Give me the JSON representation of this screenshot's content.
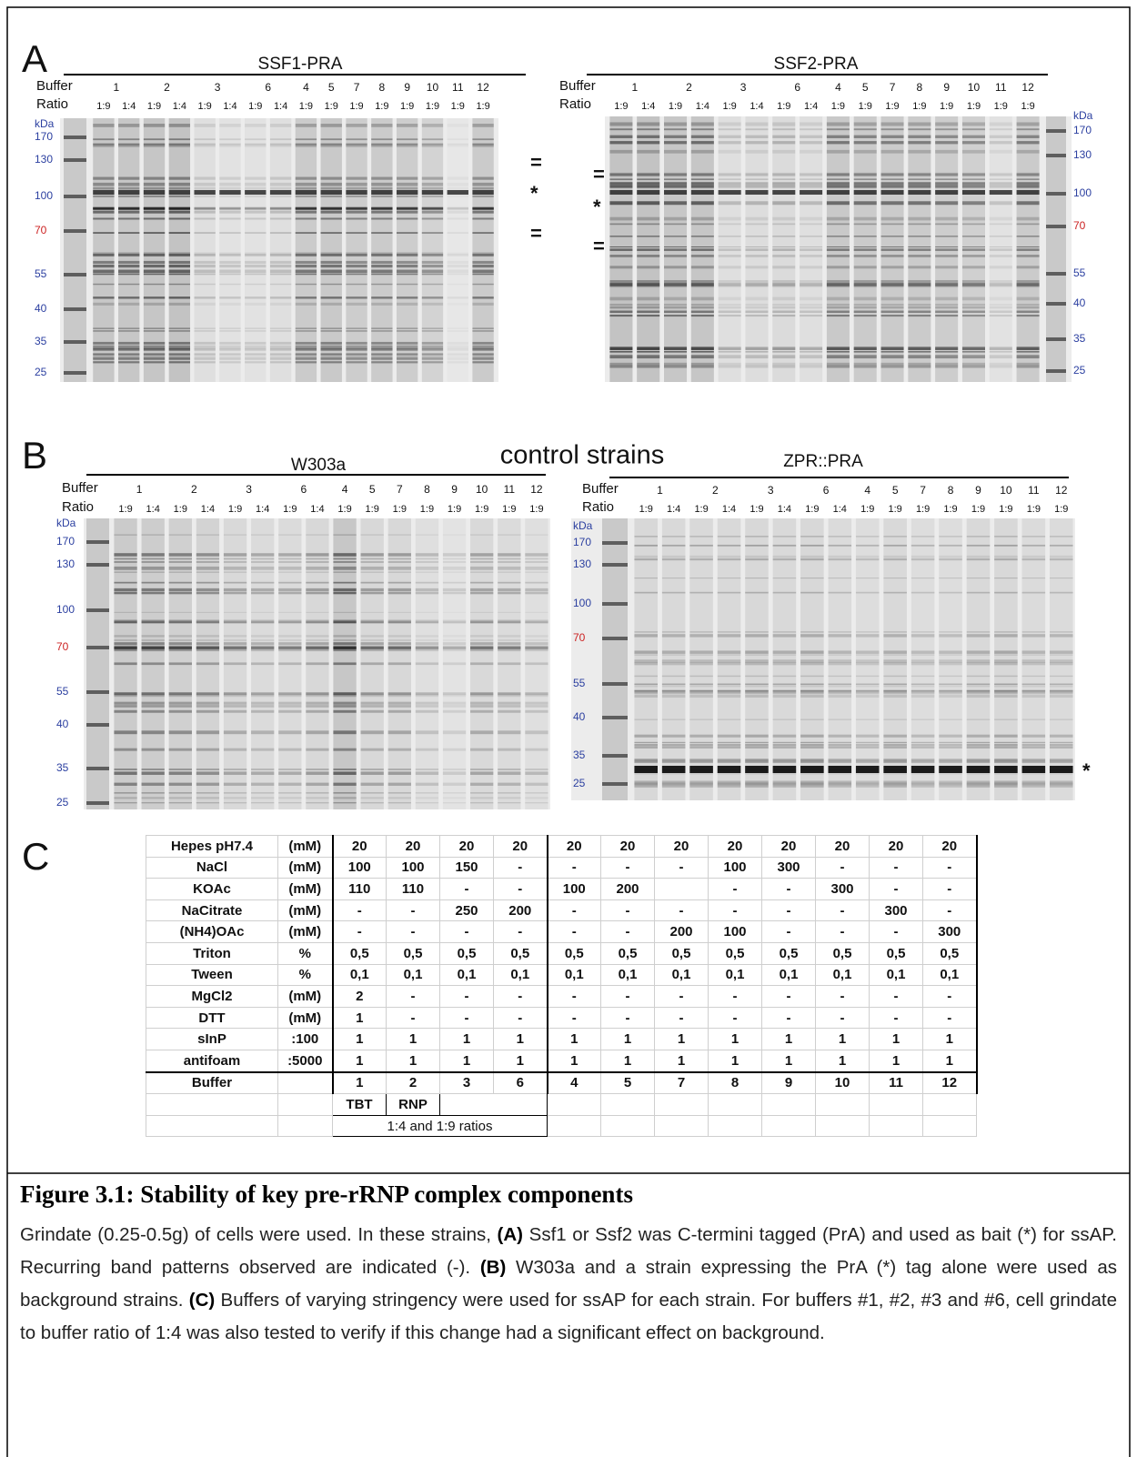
{
  "panel_a": {
    "label": "A",
    "gels": [
      {
        "title": "SSF1-PRA",
        "buffer_label": "Buffer",
        "ratio_label": "Ratio",
        "buffers": [
          1,
          2,
          3,
          6,
          4,
          5,
          7,
          8,
          9,
          10,
          11,
          12
        ],
        "ratios": [
          "1:9",
          "1:4",
          "1:9",
          "1:4",
          "1:9",
          "1:4",
          "1:9",
          "1:4",
          "1:9",
          "1:9",
          "1:9",
          "1:9",
          "1:9",
          "1:9",
          "1:9",
          "1:9"
        ],
        "marker_unit": "kDa",
        "markers": [
          170,
          130,
          100,
          70,
          55,
          40,
          35,
          25
        ],
        "annotations": [
          "=",
          "*",
          "="
        ]
      },
      {
        "title": "SSF2-PRA",
        "buffer_label": "Buffer",
        "ratio_label": "Ratio",
        "buffers": [
          1,
          2,
          3,
          6,
          4,
          5,
          7,
          8,
          9,
          10,
          11,
          12
        ],
        "ratios": [
          "1:9",
          "1:4",
          "1:9",
          "1:4",
          "1:9",
          "1:4",
          "1:9",
          "1:4",
          "1:9",
          "1:9",
          "1:9",
          "1:9",
          "1:9",
          "1:9",
          "1:9",
          "1:9"
        ],
        "marker_unit": "kDa",
        "markers": [
          170,
          130,
          100,
          70,
          55,
          40,
          35,
          25
        ],
        "annotations": [
          "=",
          "*",
          "="
        ]
      }
    ]
  },
  "panel_b": {
    "label": "B",
    "heading": "control strains",
    "gels": [
      {
        "title": "W303a",
        "buffer_label": "Buffer",
        "ratio_label": "Ratio",
        "buffers": [
          1,
          2,
          3,
          6,
          4,
          5,
          7,
          8,
          9,
          10,
          11,
          12
        ],
        "ratios": [
          "1:9",
          "1:4",
          "1:9",
          "1:4",
          "1:9",
          "1:4",
          "1:9",
          "1:4",
          "1:9",
          "1:9",
          "1:9",
          "1:9",
          "1:9",
          "1:9",
          "1:9",
          "1:9"
        ],
        "marker_unit": "kDa",
        "markers": [
          170,
          130,
          100,
          70,
          55,
          40,
          35,
          25
        ],
        "annotations": []
      },
      {
        "title": "ZPR::PRA",
        "buffer_label": "Buffer",
        "ratio_label": "Ratio",
        "buffers": [
          1,
          2,
          3,
          6,
          4,
          5,
          7,
          8,
          9,
          10,
          11,
          12
        ],
        "ratios": [
          "1:9",
          "1:4",
          "1:9",
          "1:4",
          "1:9",
          "1:4",
          "1:9",
          "1:4",
          "1:9",
          "1:9",
          "1:9",
          "1:9",
          "1:9",
          "1:9",
          "1:9",
          "1:9"
        ],
        "marker_unit": "kDa",
        "markers": [
          170,
          130,
          100,
          70,
          55,
          40,
          35,
          25
        ],
        "annotations": [
          "*"
        ]
      }
    ]
  },
  "panel_c": {
    "label": "C",
    "rows": [
      {
        "name": "Hepes pH7.4",
        "unit": "(mM)",
        "cells": [
          20,
          20,
          20,
          20,
          20,
          20,
          20,
          20,
          20,
          20,
          20,
          20
        ]
      },
      {
        "name": "NaCl",
        "unit": "(mM)",
        "cells": [
          100,
          100,
          150,
          "-",
          "-",
          "-",
          "-",
          100,
          300,
          "-",
          "-",
          "-"
        ]
      },
      {
        "name": "KOAc",
        "unit": "(mM)",
        "cells": [
          110,
          110,
          "-",
          "-",
          100,
          200,
          null,
          "-",
          "-",
          300,
          "-",
          "-"
        ]
      },
      {
        "name": "NaCitrate",
        "unit": "(mM)",
        "cells": [
          "-",
          "-",
          250,
          200,
          "-",
          "-",
          "-",
          "-",
          "-",
          "-",
          300,
          "-"
        ]
      },
      {
        "name": "(NH4)OAc",
        "unit": "(mM)",
        "cells": [
          "-",
          "-",
          "-",
          "-",
          "-",
          "-",
          200,
          100,
          "-",
          "-",
          "-",
          300
        ]
      },
      {
        "name": "Triton",
        "unit": "%",
        "cells": [
          "0,5",
          "0,5",
          "0,5",
          "0,5",
          "0,5",
          "0,5",
          "0,5",
          "0,5",
          "0,5",
          "0,5",
          "0,5",
          "0,5"
        ]
      },
      {
        "name": "Tween",
        "unit": "%",
        "cells": [
          "0,1",
          "0,1",
          "0,1",
          "0,1",
          "0,1",
          "0,1",
          "0,1",
          "0,1",
          "0,1",
          "0,1",
          "0,1",
          "0,1"
        ]
      },
      {
        "name": "MgCl2",
        "unit": "(mM)",
        "cells": [
          2,
          "-",
          "-",
          "-",
          "-",
          "-",
          "-",
          "-",
          "-",
          "-",
          "-",
          "-"
        ]
      },
      {
        "name": "DTT",
        "unit": "(mM)",
        "cells": [
          1,
          "-",
          "-",
          "-",
          "-",
          "-",
          "-",
          "-",
          "-",
          "-",
          "-",
          "-"
        ]
      },
      {
        "name": "sInP",
        "unit": ":100",
        "cells": [
          1,
          1,
          1,
          1,
          1,
          1,
          1,
          1,
          1,
          1,
          1,
          1
        ]
      },
      {
        "name": "antifoam",
        "unit": ":5000",
        "cells": [
          1,
          1,
          1,
          1,
          1,
          1,
          1,
          1,
          1,
          1,
          1,
          1
        ]
      }
    ],
    "buffer_row": {
      "name": "Buffer",
      "cells": [
        1,
        2,
        3,
        6,
        4,
        5,
        7,
        8,
        9,
        10,
        11,
        12
      ]
    },
    "notes": {
      "tbt": "TBT",
      "rnp": "RNP",
      "ratios": "1:4 and 1:9 ratios"
    }
  },
  "caption": {
    "title": "Figure 3.1: Stability of key pre-rRNP complex components",
    "body": [
      {
        "text": "Grindate (0.25-0.5g) of cells were used. In these strains, ",
        "bold": false
      },
      {
        "text": "(A)",
        "bold": true
      },
      {
        "text": " Ssf1 or Ssf2 was C-termini tagged (PrA) and used as bait (*) for ssAP. Recurring band patterns observed are indicated (-). ",
        "bold": false
      },
      {
        "text": "(B)",
        "bold": true
      },
      {
        "text": " W303a and a strain expressing the PrA (*) tag alone were used as background strains. ",
        "bold": false
      },
      {
        "text": "(C)",
        "bold": true
      },
      {
        "text": " Buffers of varying stringency were used for ssAP for each strain. For buffers #1, #2, #3 and #6, cell grindate to buffer ratio of 1:4 was also tested to verify if this change had a significant effect on background.",
        "bold": false
      }
    ]
  }
}
